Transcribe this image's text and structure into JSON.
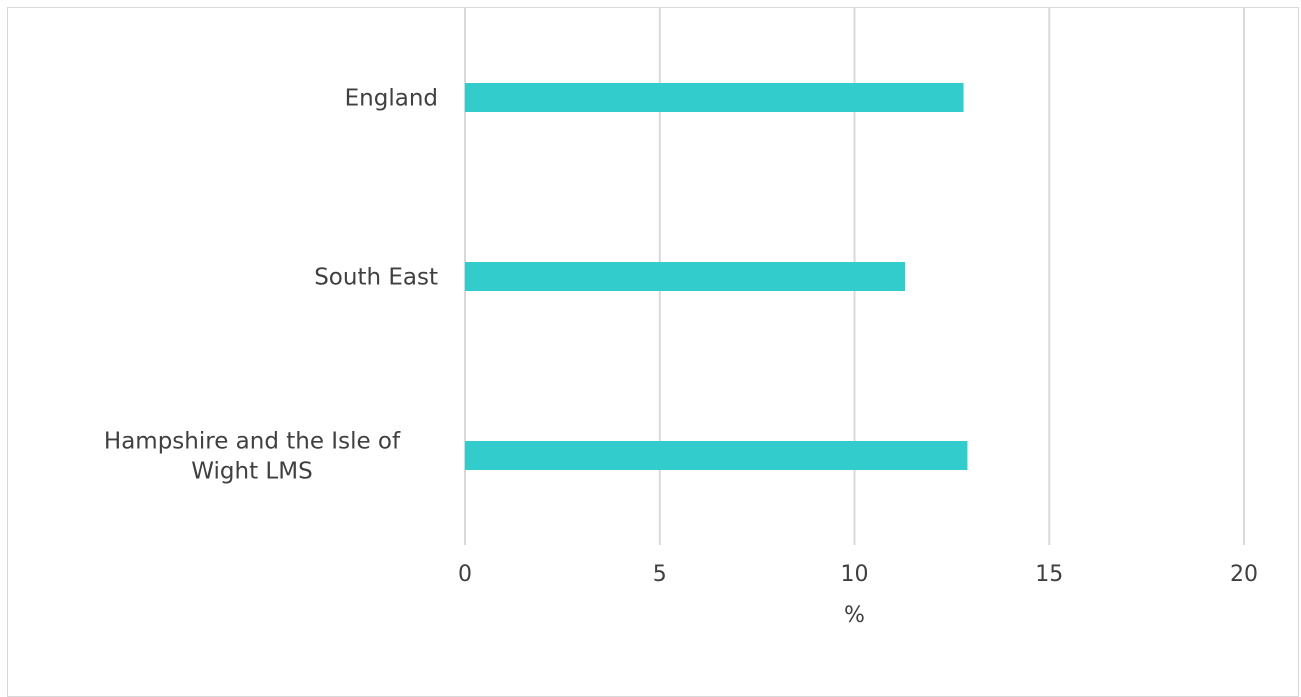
{
  "chart_data": {
    "type": "bar",
    "orientation": "horizontal",
    "categories": [
      [
        "England"
      ],
      [
        "South East"
      ],
      [
        "Hampshire and the Isle of",
        "Wight LMS"
      ]
    ],
    "values": [
      12.8,
      11.3,
      12.9
    ],
    "xlabel": "%",
    "ylabel": "",
    "xlim": [
      0,
      20
    ],
    "xticks": [
      0,
      5,
      10,
      15,
      20
    ],
    "grid": "vertical",
    "bar_color": "#33cccc",
    "grid_color": "#d9d9d9",
    "text_color": "#404040"
  }
}
